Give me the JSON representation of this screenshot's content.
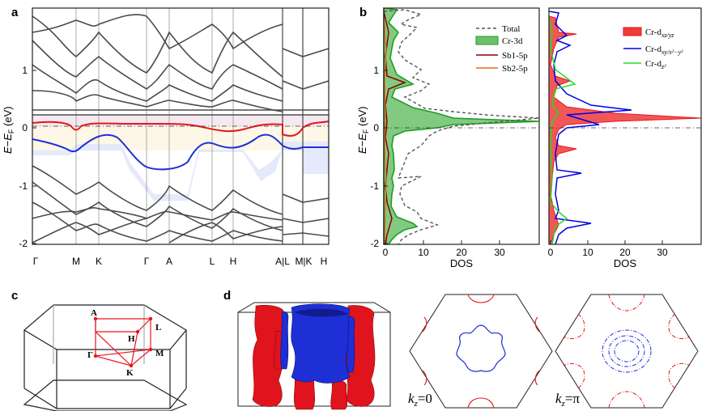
{
  "panels": {
    "a": "a",
    "b": "b",
    "c": "c",
    "d": "d"
  },
  "band_structure": {
    "ylabel_main": "E",
    "ylabel_minus": "−",
    "ylabel_ef": "E",
    "ylabel_ef_sub": "F",
    "ylabel_unit": " (eV)",
    "yticks": [
      "1",
      "0",
      "-1",
      "-2"
    ],
    "kpoints": [
      "Γ",
      "M",
      "K",
      "Γ",
      "A",
      "L",
      "H",
      "A|L",
      "M|K",
      "H"
    ],
    "colors": {
      "band": "#4a4a4a",
      "red_band": "#e8141c",
      "blue_band": "#1f2fd6",
      "fill_red": "#f2e6ea",
      "fill_yellow": "#fcf7e6",
      "fill_blue": "#e3e8fb"
    }
  },
  "dos_left": {
    "xlabel": "DOS",
    "xticks": [
      "0",
      "10",
      "20",
      "30"
    ],
    "yticks": [
      "1",
      "0",
      "-1",
      "-2"
    ],
    "legend": [
      {
        "label": "Total",
        "style": "dash",
        "color": "#555555"
      },
      {
        "label": "Cr-3d",
        "style": "fill",
        "color": "#1e9e1e"
      },
      {
        "label": "Sb1-5p",
        "style": "line",
        "color": "#8b0000"
      },
      {
        "label": "Sb2-5p",
        "style": "line",
        "color": "#e86a1a"
      }
    ]
  },
  "dos_right": {
    "xlabel": "DOS",
    "xticks": [
      "0",
      "10",
      "20",
      "30"
    ],
    "legend": [
      {
        "label": "Cr-d",
        "sub": "xz/yz",
        "style": "fill",
        "color": "#f03a3a"
      },
      {
        "label": "Cr-d",
        "sub": "xy/x²−y²",
        "style": "line",
        "color": "#0000e6"
      },
      {
        "label": "Cr-d",
        "sub": "z²",
        "style": "line",
        "color": "#22dd22"
      }
    ]
  },
  "brillouin_zone": {
    "labels": [
      "A",
      "L",
      "H",
      "Γ",
      "M",
      "K"
    ],
    "colors": {
      "path": "#e8141c",
      "edge": "#222222"
    }
  },
  "fermi_surface": {
    "kz_labels": [
      {
        "k": "k",
        "sub": "z",
        "eq": "=0"
      },
      {
        "k": "k",
        "sub": "z",
        "eq": "=π"
      }
    ],
    "colors": {
      "electron": "#e8141c",
      "hole": "#1f2fd6"
    }
  }
}
